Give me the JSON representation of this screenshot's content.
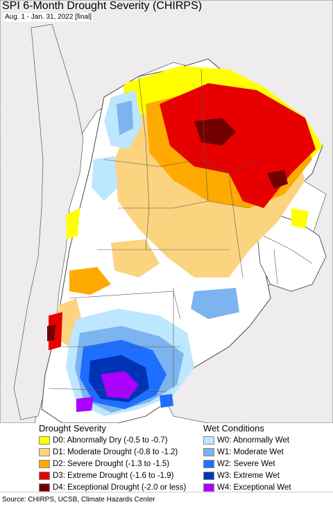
{
  "header": {
    "title": "SPI 6-Month Drought Severity (CHIRPS)",
    "subtitle": "Aug. 1 - Jan. 31, 2022 [final]"
  },
  "legend": {
    "drought": {
      "title": "Drought Severity",
      "items": [
        {
          "label": "D0: Abnormally Dry (-0.5 to -0.7)",
          "color": "#ffff00"
        },
        {
          "label": "D1: Moderate Drought (-0.8 to -1.2)",
          "color": "#fcd37f"
        },
        {
          "label": "D2: Severe Drought (-1.3 to -1.5)",
          "color": "#ffaa00"
        },
        {
          "label": "D3: Extreme Drought (-1.6 to -1.9)",
          "color": "#e60000"
        },
        {
          "label": "D4: Exceptional Drought (-2.0 or less)",
          "color": "#730000"
        }
      ]
    },
    "wet": {
      "title": "Wet Conditions",
      "items": [
        {
          "label": "W0: Abnormally Wet",
          "color": "#bde6ff"
        },
        {
          "label": "W1: Moderate Wet",
          "color": "#7bb4ef"
        },
        {
          "label": "W2: Severe Wet",
          "color": "#1e6eff"
        },
        {
          "label": "W3: Extreme Wet",
          "color": "#0033b4"
        },
        {
          "label": "W4: Exceptional Wet",
          "color": "#aa00ff"
        }
      ]
    }
  },
  "footer": {
    "source": "Source: CHIRPS, UCSB, Climate Hazards Center"
  }
}
